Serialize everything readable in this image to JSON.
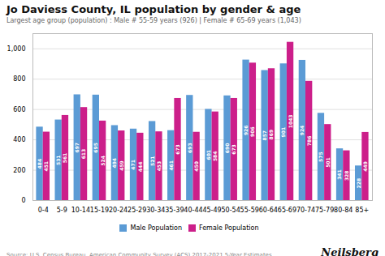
{
  "chart_data": {
    "type": "bar",
    "title": "Jo Daviess County, IL population by gender & age",
    "subtitle": "Largest age group (population) : Male # 55-59 years (926) | Female # 65-69 years (1,043)",
    "source": "Source: U.S. Census Bureau, American Community Survey (ACS) 2017-2021 5-Year Estimates",
    "brand": "Neilsberg",
    "categories": [
      "0-4",
      "5-9",
      "10-14",
      "15-19",
      "20-24",
      "25-29",
      "30-34",
      "35-39",
      "40-44",
      "45-49",
      "50-54",
      "55-59",
      "60-64",
      "65-69",
      "70-74",
      "75-79",
      "80-84",
      "85+"
    ],
    "series": [
      {
        "name": "Male Population",
        "color": "#5b9bd5",
        "values": [
          484,
          531,
          697,
          695,
          494,
          471,
          521,
          461,
          693,
          601,
          690,
          926,
          857,
          901,
          924,
          575,
          341,
          228
        ]
      },
      {
        "name": "Female Population",
        "color": "#cc1f8a",
        "values": [
          451,
          561,
          613,
          524,
          459,
          444,
          453,
          673,
          450,
          584,
          673,
          906,
          869,
          1043,
          786,
          501,
          328,
          449
        ]
      }
    ],
    "ylim": [
      0,
      1100
    ],
    "yticks": [
      0,
      200,
      400,
      600,
      800,
      1000
    ],
    "grid": true,
    "legend": "bottom",
    "data_labels": true
  }
}
